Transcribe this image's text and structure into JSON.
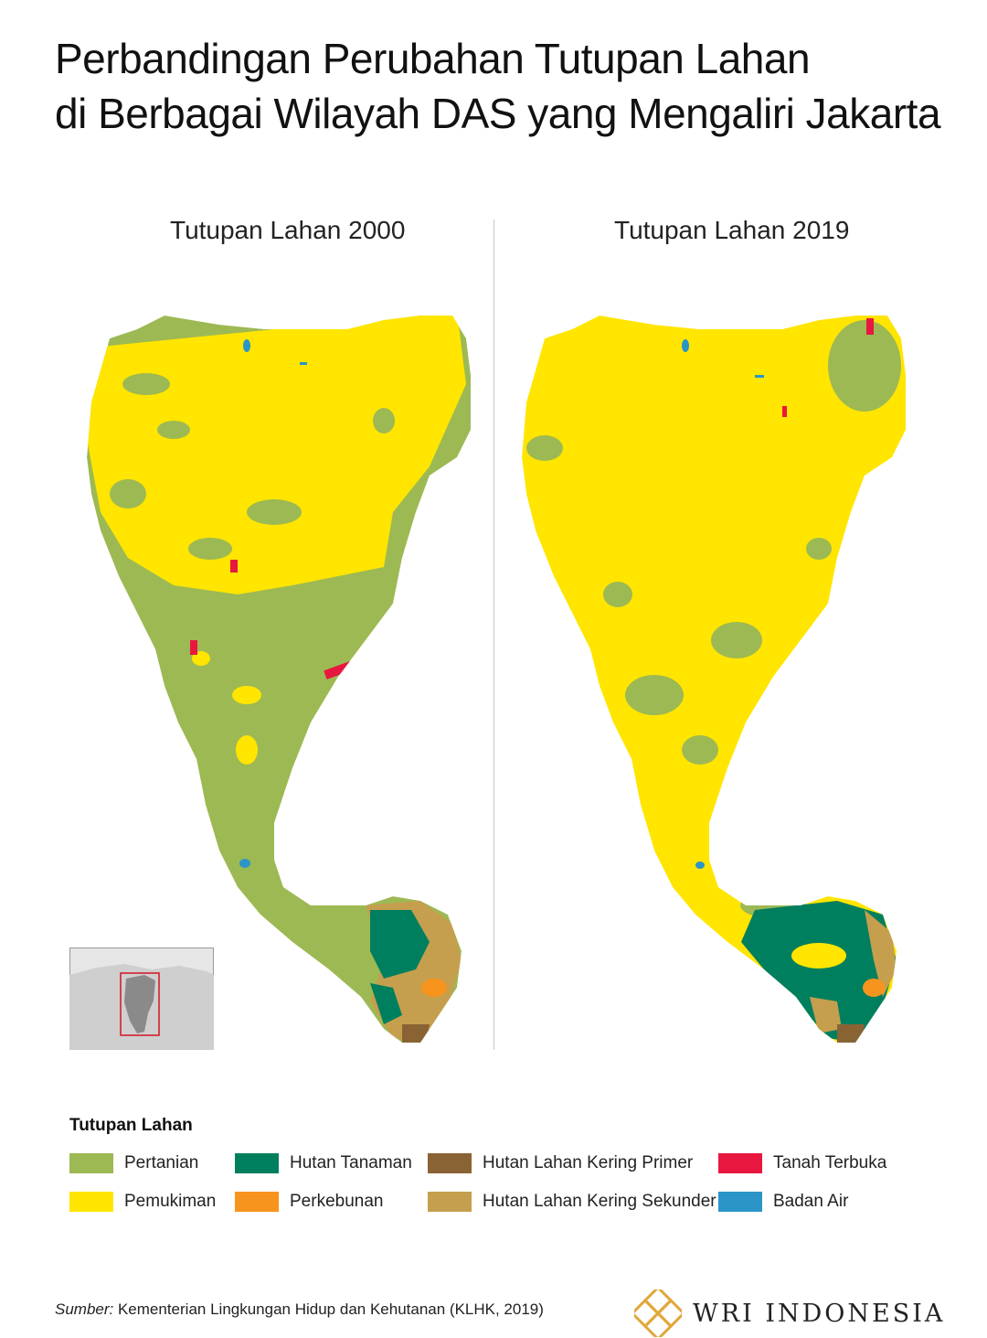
{
  "title": {
    "line1": "Perbandingan Perubahan Tutupan Lahan",
    "line2": "di Berbagai Wilayah DAS yang Mengaliri Jakarta"
  },
  "panels": [
    {
      "label": "Tutupan Lahan 2000"
    },
    {
      "label": "Tutupan Lahan 2019"
    }
  ],
  "colors": {
    "pertanian": "#9db953",
    "pemukiman": "#ffe500",
    "hutan_tanaman": "#007f5f",
    "perkebunan": "#f7941d",
    "hutan_primer": "#8a6334",
    "hutan_sekunder": "#c59f4d",
    "tanah_terbuka": "#e8173f",
    "badan_air": "#2b95c7"
  },
  "legend": {
    "title": "Tutupan Lahan",
    "items": [
      {
        "label": "Pertanian",
        "color_key": "pertanian"
      },
      {
        "label": "Pemukiman",
        "color_key": "pemukiman"
      },
      {
        "label": "Hutan Tanaman",
        "color_key": "hutan_tanaman"
      },
      {
        "label": "Perkebunan",
        "color_key": "perkebunan"
      },
      {
        "label": "Hutan Lahan Kering Primer",
        "color_key": "hutan_primer"
      },
      {
        "label": "Hutan Lahan Kering Sekunder",
        "color_key": "hutan_sekunder"
      },
      {
        "label": "Tanah Terbuka",
        "color_key": "tanah_terbuka"
      },
      {
        "label": "Badan Air",
        "color_key": "badan_air"
      }
    ]
  },
  "footer": {
    "source_prefix": "Sumber:",
    "source_text": " Kementerian Lingkungan Hidup dan Kehutanan (KLHK, 2019)",
    "brand": "WRI INDONESIA"
  },
  "icons": [
    "wri-logo-icon",
    "locator-map-icon"
  ]
}
